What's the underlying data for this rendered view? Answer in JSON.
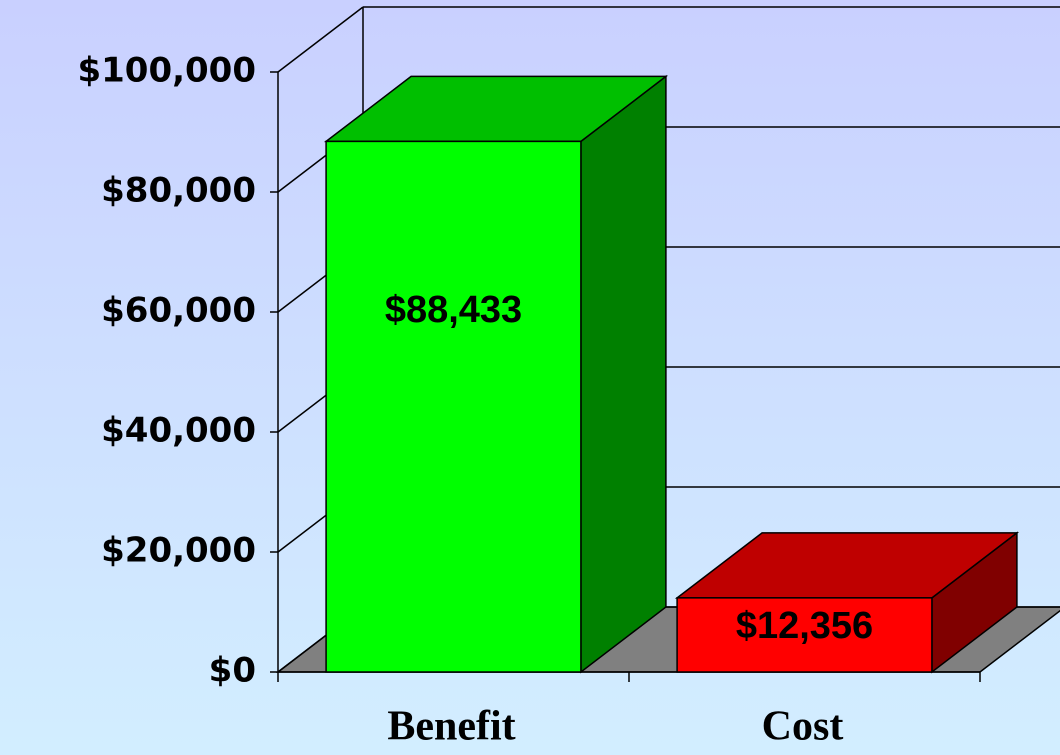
{
  "chart_data": {
    "type": "bar3d",
    "categories": [
      "Benefit",
      "Cost"
    ],
    "values": [
      88433,
      12356
    ],
    "value_labels": [
      "$88,433",
      "$12,356"
    ],
    "colors": [
      "#00ff00",
      "#ff0000"
    ],
    "ylim": [
      0,
      100000
    ],
    "yticks": [
      {
        "value": 0,
        "label": "$0"
      },
      {
        "value": 20000,
        "label": "$20,000"
      },
      {
        "value": 40000,
        "label": "$40,000"
      },
      {
        "value": 60000,
        "label": "$60,000"
      },
      {
        "value": 80000,
        "label": "$80,000"
      },
      {
        "value": 100000,
        "label": "$100,000"
      }
    ],
    "grid": true
  }
}
